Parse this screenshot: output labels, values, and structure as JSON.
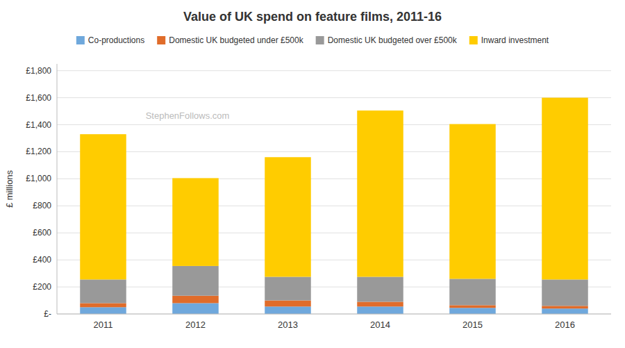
{
  "chart_data": {
    "type": "bar",
    "stacked": true,
    "title": "Value of UK spend on feature films, 2011-16",
    "ylabel": "£ millions",
    "categories": [
      "2011",
      "2012",
      "2013",
      "2014",
      "2015",
      "2016"
    ],
    "series": [
      {
        "name": "Co-productions",
        "color": "#6fa8dc",
        "values": [
          50,
          80,
          55,
          55,
          45,
          40
        ]
      },
      {
        "name": "Domestic UK budgeted under £500k",
        "color": "#e06c2a",
        "values": [
          30,
          55,
          45,
          35,
          20,
          20
        ]
      },
      {
        "name": "Domestic UK budgeted over £500k",
        "color": "#999999",
        "values": [
          175,
          220,
          175,
          185,
          195,
          195
        ]
      },
      {
        "name": "Inward investment",
        "color": "#ffcc00",
        "values": [
          1075,
          650,
          885,
          1230,
          1145,
          1345
        ]
      }
    ],
    "ylim": [
      0,
      1850
    ],
    "yticks": [
      {
        "value": 0,
        "label": "£-"
      },
      {
        "value": 200,
        "label": "£200"
      },
      {
        "value": 400,
        "label": "£400"
      },
      {
        "value": 600,
        "label": "£600"
      },
      {
        "value": 800,
        "label": "£800"
      },
      {
        "value": 1000,
        "label": "£1,000"
      },
      {
        "value": 1200,
        "label": "£1,200"
      },
      {
        "value": 1400,
        "label": "£1,400"
      },
      {
        "value": 1600,
        "label": "£1,600"
      },
      {
        "value": 1800,
        "label": "£1,800"
      }
    ],
    "annotations": [
      "StephenFollows.com"
    ],
    "grid": true,
    "legend": "top"
  }
}
